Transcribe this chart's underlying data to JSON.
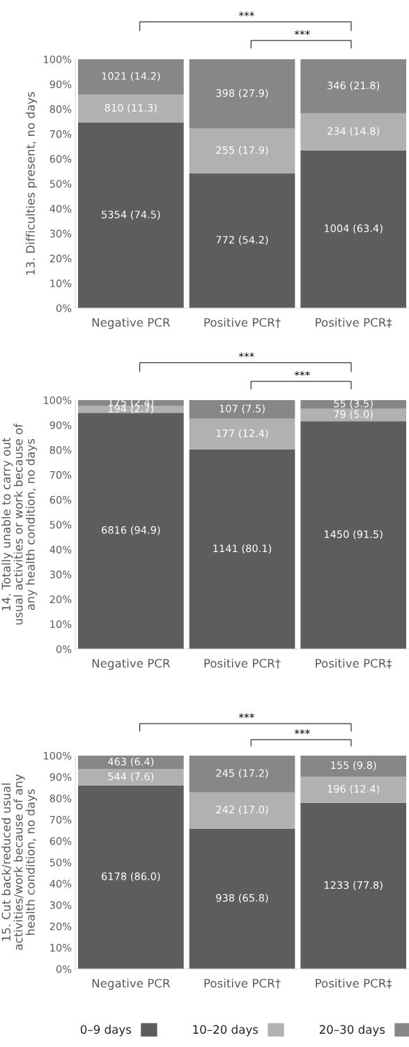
{
  "chart_data": [
    {
      "type": "bar",
      "stacked": true,
      "ylabel": "13. Difficulties present, no days",
      "categories": [
        "Negative PCR",
        "Positive PCR†",
        "Positive PCR‡"
      ],
      "ylim": [
        0,
        100
      ],
      "yticks": [
        {
          "value": 0,
          "label": "0%"
        },
        {
          "value": 10,
          "label": "10%"
        },
        {
          "value": 20,
          "label": "20%"
        },
        {
          "value": 30,
          "label": "30%"
        },
        {
          "value": 40,
          "label": "40%"
        },
        {
          "value": 50,
          "label": "50%"
        },
        {
          "value": 60,
          "label": "60%"
        },
        {
          "value": 70,
          "label": "70%"
        },
        {
          "value": 80,
          "label": "80%"
        },
        {
          "value": 90,
          "label": "90%"
        },
        {
          "value": 100,
          "label": "100%"
        }
      ],
      "grid": false,
      "legend": false,
      "annotations": [
        "***",
        "***"
      ],
      "series": [
        {
          "color": "#5d5d5d",
          "values": [
            74.5,
            54.2,
            63.4
          ],
          "value_labels": [
            "5354 (74.5)",
            "772 (54.2)",
            "1004 (63.4)"
          ]
        },
        {
          "color": "#b1b1b1",
          "values": [
            11.3,
            17.9,
            14.8
          ],
          "value_labels": [
            "810 (11.3)",
            "255 (17.9)",
            "234 (14.8)"
          ]
        },
        {
          "color": "#878787",
          "values": [
            14.2,
            27.9,
            21.8
          ],
          "value_labels": [
            "1021 (14.2)",
            "398 (27.9)",
            "346 (21.8)"
          ]
        }
      ]
    },
    {
      "type": "bar",
      "stacked": true,
      "ylabel": "14. Totally unable to carry out\nusual activities or work because of\nany health condition, no days",
      "categories": [
        "Negative PCR",
        "Positive PCR†",
        "Positive PCR‡"
      ],
      "ylim": [
        0,
        100
      ],
      "yticks": [
        {
          "value": 0,
          "label": "0%"
        },
        {
          "value": 10,
          "label": "10%"
        },
        {
          "value": 20,
          "label": "20%"
        },
        {
          "value": 30,
          "label": "30%"
        },
        {
          "value": 40,
          "label": "40%"
        },
        {
          "value": 50,
          "label": "50%"
        },
        {
          "value": 60,
          "label": "60%"
        },
        {
          "value": 70,
          "label": "70%"
        },
        {
          "value": 80,
          "label": "80%"
        },
        {
          "value": 90,
          "label": "90%"
        },
        {
          "value": 100,
          "label": "100%"
        }
      ],
      "grid": false,
      "legend": false,
      "annotations": [
        "***",
        "***"
      ],
      "series": [
        {
          "color": "#5d5d5d",
          "values": [
            94.9,
            80.1,
            91.5
          ],
          "value_labels": [
            "6816 (94.9)",
            "1141 (80.1)",
            "1450 (91.5)"
          ]
        },
        {
          "color": "#b1b1b1",
          "values": [
            2.7,
            12.4,
            5.0
          ],
          "value_labels": [
            "194 (2.7)",
            "177 (12.4)",
            "79 (5.0)"
          ]
        },
        {
          "color": "#878787",
          "values": [
            2.4,
            7.5,
            3.5
          ],
          "value_labels": [
            "175 (2.4)",
            "107 (7.5)",
            "55 (3.5)"
          ]
        }
      ]
    },
    {
      "type": "bar",
      "stacked": true,
      "ylabel": "15. Cut back/reduced usual\nactivities/work because of any\nhealth condition, no days",
      "categories": [
        "Negative PCR",
        "Positive PCR†",
        "Positive PCR‡"
      ],
      "ylim": [
        0,
        100
      ],
      "yticks": [
        {
          "value": 0,
          "label": "0%"
        },
        {
          "value": 10,
          "label": "10%"
        },
        {
          "value": 20,
          "label": "20%"
        },
        {
          "value": 30,
          "label": "30%"
        },
        {
          "value": 40,
          "label": "40%"
        },
        {
          "value": 50,
          "label": "50%"
        },
        {
          "value": 60,
          "label": "60%"
        },
        {
          "value": 70,
          "label": "70%"
        },
        {
          "value": 80,
          "label": "80%"
        },
        {
          "value": 90,
          "label": "90%"
        },
        {
          "value": 100,
          "label": "100%"
        }
      ],
      "grid": false,
      "legend": "bottom",
      "annotations": [
        "***",
        "***"
      ],
      "series": [
        {
          "name": "0–9 days",
          "color": "#5d5d5d",
          "values": [
            86.0,
            65.8,
            77.8
          ],
          "value_labels": [
            "6178 (86.0)",
            "938 (65.8)",
            "1233 (77.8)"
          ]
        },
        {
          "name": "10–20 days",
          "color": "#b1b1b1",
          "values": [
            7.6,
            17.0,
            12.4
          ],
          "value_labels": [
            "544 (7.6)",
            "242 (17.0)",
            "196 (12.4)"
          ]
        },
        {
          "name": "20–30 days",
          "color": "#878787",
          "values": [
            6.4,
            17.2,
            9.8
          ],
          "value_labels": [
            "463 (6.4)",
            "245 (17.2)",
            "155 (9.8)"
          ]
        }
      ]
    }
  ]
}
